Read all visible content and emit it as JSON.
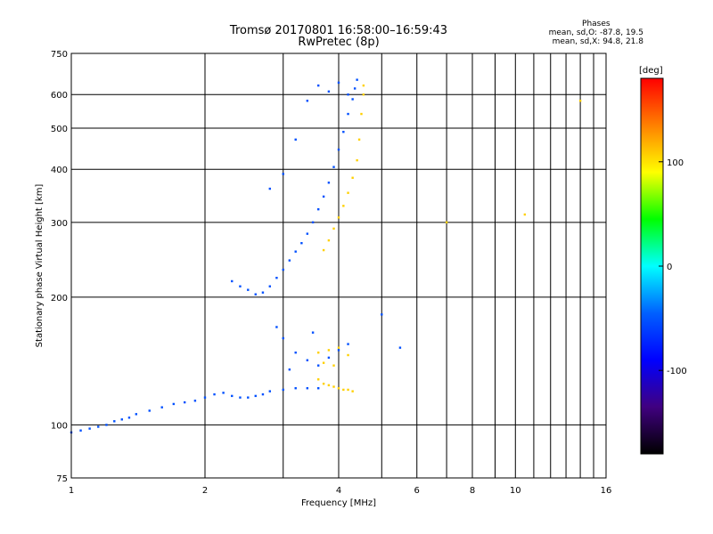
{
  "header": {
    "title_line1": "Tromsø 20170801 16:58:00–16:59:43",
    "title_line2": "RwPretec (8p)"
  },
  "phases": {
    "title": "Phases",
    "line_o": "mean, sd,O: -87.8, 19.5",
    "line_x": "mean, sd,X:  94.8, 21.8"
  },
  "colorbar": {
    "label": "[deg]",
    "range": [
      -180,
      180
    ],
    "ticks": [
      100,
      0,
      -100
    ],
    "tick_labels": [
      "100",
      "0",
      "-100"
    ],
    "colors": [
      "#ff0000",
      "#ff8000",
      "#ffff00",
      "#00ff00",
      "#00ffff",
      "#0060ff",
      "#0000ff",
      "#400080",
      "#000000"
    ]
  },
  "chart_data": {
    "type": "scatter",
    "title": "Tromsø 20170801 16:58:00–16:59:43",
    "subtitle": "RwPretec (8p)",
    "xlabel": "Frequency [MHz]",
    "ylabel": "Stationary phase Virtual Height [km]",
    "xscale": "log",
    "yscale": "log",
    "xlim": [
      1,
      16
    ],
    "ylim": [
      75,
      750
    ],
    "xticks": [
      1,
      2,
      4,
      6,
      8,
      10,
      16
    ],
    "yticks": [
      75,
      100,
      200,
      300,
      400,
      500,
      600,
      750
    ],
    "grid": true,
    "series": [
      {
        "name": "O",
        "color": "#0050ff",
        "points": [
          [
            1.0,
            96
          ],
          [
            1.05,
            97
          ],
          [
            1.1,
            98
          ],
          [
            1.15,
            99
          ],
          [
            1.2,
            100
          ],
          [
            1.25,
            102
          ],
          [
            1.3,
            103
          ],
          [
            1.35,
            104
          ],
          [
            1.4,
            106
          ],
          [
            1.5,
            108
          ],
          [
            1.6,
            110
          ],
          [
            1.7,
            112
          ],
          [
            1.8,
            113
          ],
          [
            1.9,
            114
          ],
          [
            2.0,
            116
          ],
          [
            2.1,
            118
          ],
          [
            2.2,
            119
          ],
          [
            2.3,
            117
          ],
          [
            2.4,
            116
          ],
          [
            2.5,
            116
          ],
          [
            2.6,
            117
          ],
          [
            2.7,
            118
          ],
          [
            2.8,
            120
          ],
          [
            3.0,
            121
          ],
          [
            3.2,
            122
          ],
          [
            3.4,
            122
          ],
          [
            3.6,
            122
          ],
          [
            2.3,
            218
          ],
          [
            2.4,
            212
          ],
          [
            2.5,
            208
          ],
          [
            2.6,
            203
          ],
          [
            2.7,
            205
          ],
          [
            2.8,
            212
          ],
          [
            2.9,
            222
          ],
          [
            3.0,
            232
          ],
          [
            3.1,
            244
          ],
          [
            3.2,
            256
          ],
          [
            3.3,
            268
          ],
          [
            3.4,
            282
          ],
          [
            3.5,
            300
          ],
          [
            3.6,
            322
          ],
          [
            3.7,
            345
          ],
          [
            3.8,
            372
          ],
          [
            3.9,
            405
          ],
          [
            4.0,
            445
          ],
          [
            4.1,
            490
          ],
          [
            4.2,
            540
          ],
          [
            4.3,
            585
          ],
          [
            4.35,
            620
          ],
          [
            2.8,
            360
          ],
          [
            3.0,
            390
          ],
          [
            3.2,
            470
          ],
          [
            3.4,
            580
          ],
          [
            3.6,
            630
          ],
          [
            3.8,
            610
          ],
          [
            4.0,
            640
          ],
          [
            4.2,
            600
          ],
          [
            4.4,
            650
          ],
          [
            3.0,
            160
          ],
          [
            3.2,
            148
          ],
          [
            3.4,
            142
          ],
          [
            3.6,
            138
          ],
          [
            3.8,
            144
          ],
          [
            4.0,
            150
          ],
          [
            4.2,
            155
          ],
          [
            2.9,
            170
          ],
          [
            3.1,
            135
          ],
          [
            3.5,
            165
          ],
          [
            5.5,
            152
          ],
          [
            5.0,
            182
          ]
        ]
      },
      {
        "name": "X",
        "color": "#ffd000",
        "points": [
          [
            3.7,
            258
          ],
          [
            3.8,
            272
          ],
          [
            3.9,
            290
          ],
          [
            4.0,
            308
          ],
          [
            4.1,
            328
          ],
          [
            4.2,
            352
          ],
          [
            4.3,
            382
          ],
          [
            4.4,
            420
          ],
          [
            4.45,
            470
          ],
          [
            4.5,
            540
          ],
          [
            4.55,
            600
          ],
          [
            4.55,
            630
          ],
          [
            3.6,
            128
          ],
          [
            3.7,
            125
          ],
          [
            3.8,
            124
          ],
          [
            3.9,
            123
          ],
          [
            4.0,
            122
          ],
          [
            4.1,
            121
          ],
          [
            4.2,
            121
          ],
          [
            4.3,
            120
          ],
          [
            3.6,
            148
          ],
          [
            3.8,
            150
          ],
          [
            4.0,
            152
          ],
          [
            4.2,
            146
          ],
          [
            3.7,
            140
          ],
          [
            3.9,
            138
          ],
          [
            7.0,
            300
          ],
          [
            10.5,
            313
          ],
          [
            14.0,
            580
          ]
        ]
      }
    ]
  }
}
